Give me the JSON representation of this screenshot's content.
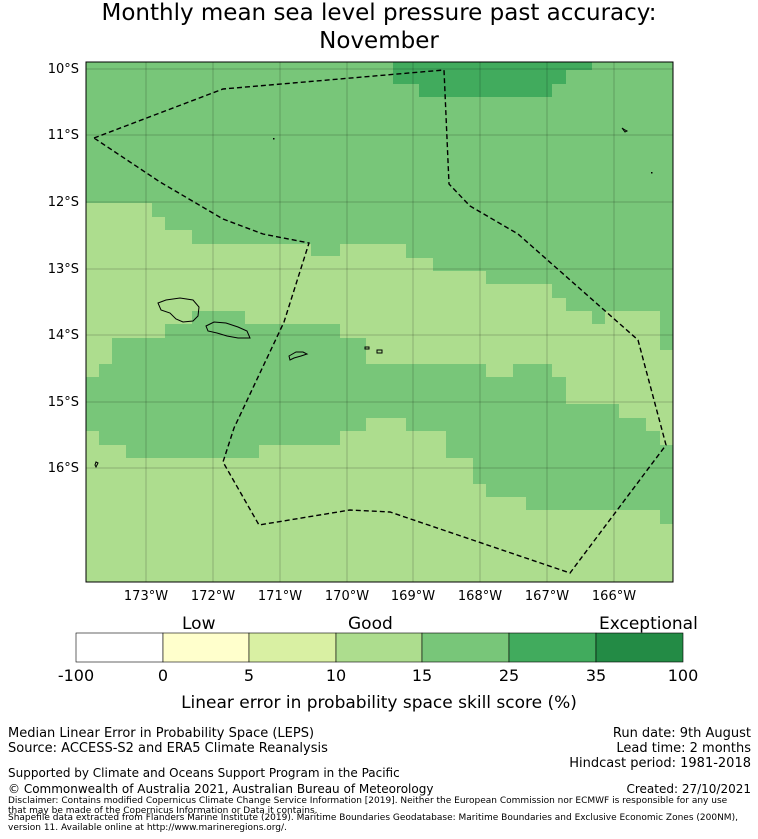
{
  "title": {
    "line1": "Monthly mean sea level pressure past accuracy:",
    "line2": "November"
  },
  "map": {
    "lat_labels": [
      "10°S",
      "11°S",
      "12°S",
      "13°S",
      "14°S",
      "15°S",
      "16°S"
    ],
    "lon_labels": [
      "173°W",
      "172°W",
      "171°W",
      "170°W",
      "169°W",
      "168°W",
      "167°W",
      "166°W"
    ],
    "colors": {
      "exceptional_dark": "#238b45",
      "band_35": "#41ab5d",
      "band_25": "#78c679",
      "band_15": "#addd8e",
      "band_5": "#d9f0a3",
      "band_0": "#ffffcc",
      "band_neg": "#ffffff"
    }
  },
  "colorbar": {
    "category_labels": [
      "Low",
      "Good",
      "Exceptional"
    ],
    "ticks": [
      "-100",
      "0",
      "5",
      "10",
      "15",
      "25",
      "35",
      "100"
    ],
    "colors": [
      "#ffffff",
      "#ffffcc",
      "#d9f0a3",
      "#addd8e",
      "#78c679",
      "#41ab5d",
      "#238b45"
    ],
    "axis_label": "Linear error in probability space skill score (%)"
  },
  "footer": {
    "left_line1": "Median Linear Error in Probability Space (LEPS)",
    "left_line2": "Source: ACCESS-S2 and ERA5 Climate Reanalysis",
    "supported": "Supported by Climate and Oceans Support Program in the Pacific",
    "copyright": "© Commonwealth of Australia 2021, Australian Bureau of Meteorology",
    "run_date": "Run date: 9th August",
    "lead_time": "Lead time: 2 months",
    "hindcast": "Hindcast period: 1981-2018",
    "created": "Created: 27/10/2021",
    "disclaimer1": "Disclaimer: Contains modified Copernicus Climate Change Service Information [2019]. Neither the European Commission nor ECMWF is responsible for any use",
    "disclaimer2": "that may be made of the Copernicus Information or Data it contains.",
    "shapefile1": "Shapefile data extracted from Flanders Marine Institute (2019). Maritime Boundaries Geodatabase: Maritime Boundaries and Exclusive Economic Zones (200NM),",
    "shapefile2": "version 11. Available online at http://www.marineregions.org/."
  }
}
